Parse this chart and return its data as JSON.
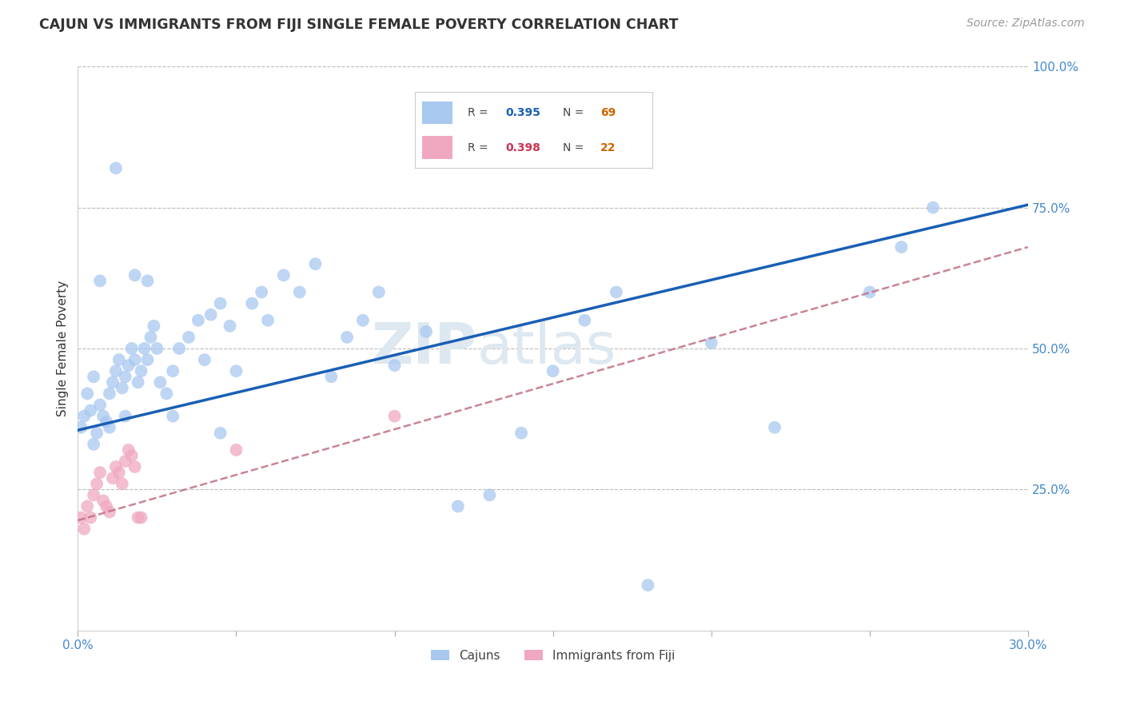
{
  "title": "CAJUN VS IMMIGRANTS FROM FIJI SINGLE FEMALE POVERTY CORRELATION CHART",
  "source": "Source: ZipAtlas.com",
  "ylabel": "Single Female Poverty",
  "xlim": [
    0.0,
    0.3
  ],
  "ylim": [
    0.0,
    1.0
  ],
  "xticks": [
    0.0,
    0.05,
    0.1,
    0.15,
    0.2,
    0.25,
    0.3
  ],
  "yticks": [
    0.0,
    0.25,
    0.5,
    0.75,
    1.0
  ],
  "cajun_R": 0.395,
  "cajun_N": 69,
  "fiji_R": 0.398,
  "fiji_N": 22,
  "cajun_color": "#a8c8f0",
  "fiji_color": "#f0a8c0",
  "cajun_line_color": "#1a5fb4",
  "fiji_line_color": "#c07080",
  "background_color": "#ffffff",
  "grid_color": "#bbbbbb",
  "watermark_color": "#dde8f0",
  "axis_label_color": "#4488cc",
  "title_color": "#333333",
  "cajun_x": [
    0.001,
    0.002,
    0.003,
    0.004,
    0.005,
    0.005,
    0.006,
    0.007,
    0.008,
    0.009,
    0.01,
    0.01,
    0.011,
    0.012,
    0.013,
    0.014,
    0.015,
    0.015,
    0.016,
    0.017,
    0.018,
    0.019,
    0.02,
    0.021,
    0.022,
    0.023,
    0.024,
    0.025,
    0.026,
    0.028,
    0.03,
    0.032,
    0.035,
    0.038,
    0.04,
    0.042,
    0.045,
    0.048,
    0.05,
    0.055,
    0.058,
    0.06,
    0.065,
    0.07,
    0.075,
    0.08,
    0.085,
    0.09,
    0.095,
    0.1,
    0.11,
    0.12,
    0.13,
    0.14,
    0.15,
    0.16,
    0.17,
    0.18,
    0.2,
    0.22,
    0.25,
    0.26,
    0.27,
    0.007,
    0.012,
    0.018,
    0.022,
    0.03,
    0.045
  ],
  "cajun_y": [
    0.36,
    0.38,
    0.42,
    0.39,
    0.33,
    0.45,
    0.35,
    0.4,
    0.38,
    0.37,
    0.42,
    0.36,
    0.44,
    0.46,
    0.48,
    0.43,
    0.45,
    0.38,
    0.47,
    0.5,
    0.48,
    0.44,
    0.46,
    0.5,
    0.48,
    0.52,
    0.54,
    0.5,
    0.44,
    0.42,
    0.46,
    0.5,
    0.52,
    0.55,
    0.48,
    0.56,
    0.58,
    0.54,
    0.46,
    0.58,
    0.6,
    0.55,
    0.63,
    0.6,
    0.65,
    0.45,
    0.52,
    0.55,
    0.6,
    0.47,
    0.53,
    0.22,
    0.24,
    0.35,
    0.46,
    0.55,
    0.6,
    0.08,
    0.51,
    0.36,
    0.6,
    0.68,
    0.75,
    0.62,
    0.82,
    0.63,
    0.62,
    0.38,
    0.35
  ],
  "fiji_x": [
    0.001,
    0.002,
    0.003,
    0.004,
    0.005,
    0.006,
    0.007,
    0.008,
    0.009,
    0.01,
    0.011,
    0.012,
    0.013,
    0.014,
    0.015,
    0.016,
    0.017,
    0.018,
    0.019,
    0.02,
    0.05,
    0.1
  ],
  "fiji_y": [
    0.2,
    0.18,
    0.22,
    0.2,
    0.24,
    0.26,
    0.28,
    0.23,
    0.22,
    0.21,
    0.27,
    0.29,
    0.28,
    0.26,
    0.3,
    0.32,
    0.31,
    0.29,
    0.2,
    0.2,
    0.32,
    0.38
  ],
  "cajun_regline_x": [
    0.0,
    0.3
  ],
  "cajun_regline_y": [
    0.355,
    0.755
  ],
  "fiji_regline_x": [
    0.0,
    0.3
  ],
  "fiji_regline_y": [
    0.195,
    0.68
  ]
}
